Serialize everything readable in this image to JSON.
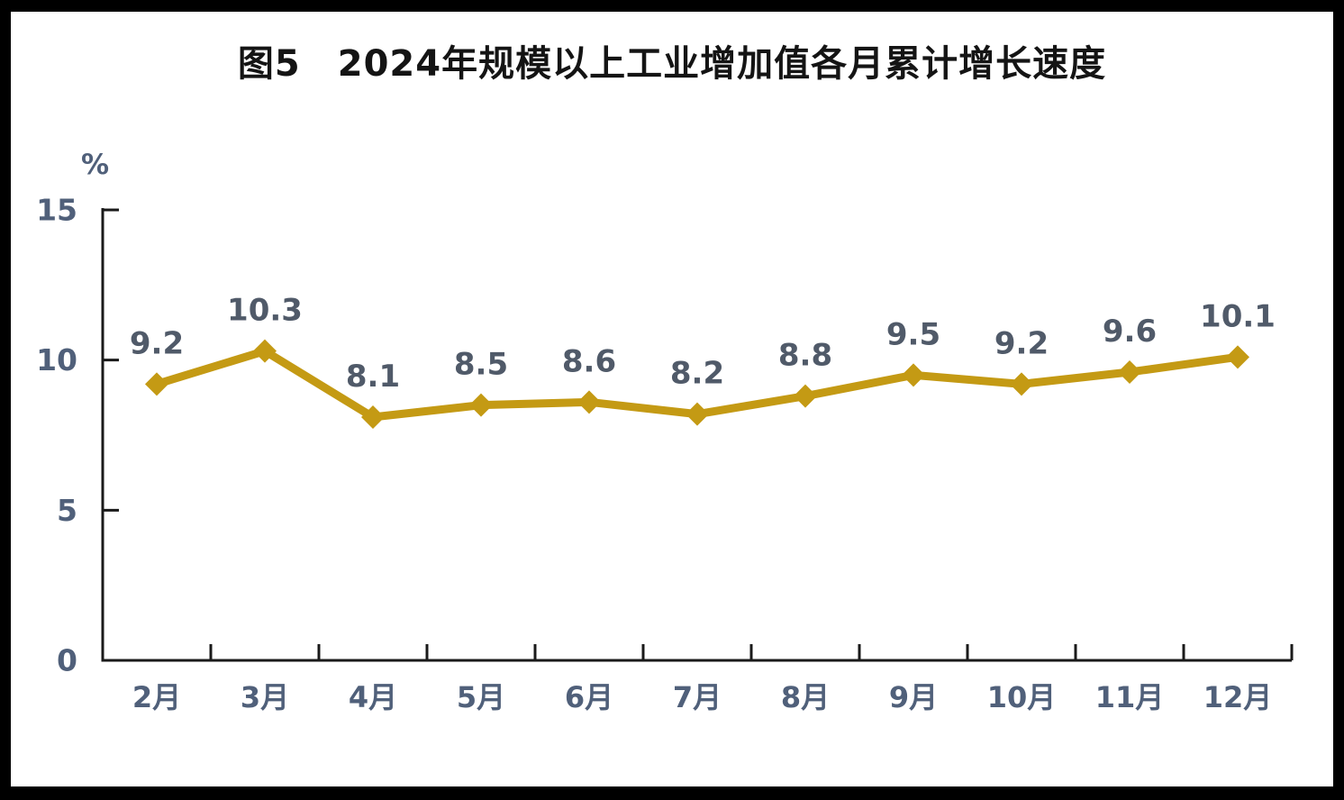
{
  "page": {
    "background": "#ffffff",
    "frame_color": "#000000"
  },
  "chart_data": {
    "type": "line",
    "title": "图5　2024年规模以上工业增加值各月累计增长速度",
    "unit_label": "%",
    "categories": [
      "2月",
      "3月",
      "4月",
      "5月",
      "6月",
      "7月",
      "8月",
      "9月",
      "10月",
      "11月",
      "12月"
    ],
    "values": [
      9.2,
      10.3,
      8.1,
      8.5,
      8.6,
      8.2,
      8.8,
      9.5,
      9.2,
      9.6,
      10.1
    ],
    "data_labels": [
      "9.2",
      "10.3",
      "8.1",
      "8.5",
      "8.6",
      "8.2",
      "8.8",
      "9.5",
      "9.2",
      "9.6",
      "10.1"
    ],
    "ylim": [
      0,
      15
    ],
    "yticks": [
      0,
      5,
      10,
      15
    ],
    "ytick_labels": [
      "0",
      "5",
      "10",
      "15"
    ],
    "grid": false,
    "legend_position": "none",
    "marker": "diamond",
    "line_color": "#C49A14",
    "marker_color": "#C49A14",
    "data_label_color": "#505A69",
    "tick_label_color": "#50607A",
    "axis_color": "#1A1A1A",
    "title_color": "#141414"
  }
}
